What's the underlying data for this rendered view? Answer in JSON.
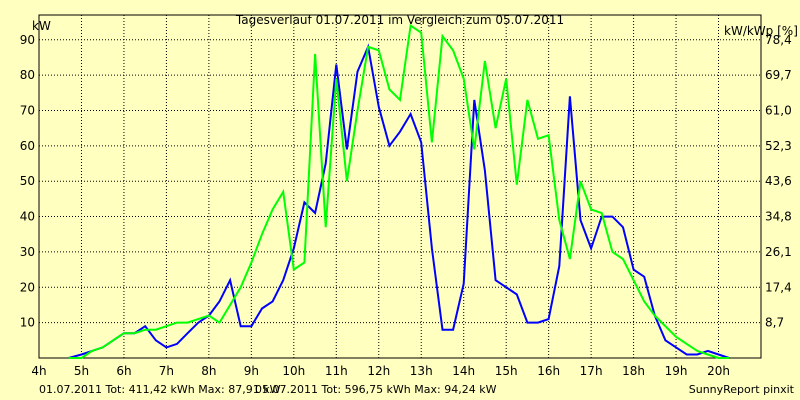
{
  "chart_data": {
    "type": "line",
    "title": "Tagesverlauf 01.07.2011 im Vergleich zum 05.07.2011",
    "ylabel_left": "kW",
    "ylabel_right": "kW/kWp [%]",
    "footer_left": "SunnyReport pinxit",
    "ylim": [
      0,
      97
    ],
    "xlim": [
      4,
      21
    ],
    "grid": true,
    "y_ticks_left": [
      10,
      20,
      30,
      40,
      50,
      60,
      70,
      80,
      90
    ],
    "y_ticks_right": [
      "8,7",
      "17,4",
      "26,1",
      "34,8",
      "43,6",
      "52,3",
      "61,0",
      "69,7",
      "78,4"
    ],
    "x_ticks": [
      "4h",
      "5h",
      "6h",
      "7h",
      "8h",
      "9h",
      "10h",
      "11h",
      "12h",
      "13h",
      "14h",
      "15h",
      "16h",
      "17h",
      "18h",
      "19h",
      "20h"
    ],
    "series": [
      {
        "name": "01.07.2011",
        "summary": "01.07.2011 Tot: 411,42 kWh Max: 87,91 kW",
        "color": "#0000ff",
        "x": [
          4.7,
          5.0,
          5.25,
          5.5,
          5.75,
          6.0,
          6.25,
          6.5,
          6.75,
          7.0,
          7.25,
          7.5,
          7.75,
          8.0,
          8.25,
          8.5,
          8.75,
          9.0,
          9.25,
          9.5,
          9.75,
          10.0,
          10.25,
          10.5,
          10.75,
          11.0,
          11.25,
          11.5,
          11.75,
          12.0,
          12.25,
          12.5,
          12.75,
          13.0,
          13.25,
          13.5,
          13.75,
          14.0,
          14.25,
          14.5,
          14.75,
          15.0,
          15.25,
          15.5,
          15.75,
          16.0,
          16.25,
          16.5,
          16.75,
          17.0,
          17.25,
          17.5,
          17.75,
          18.0,
          18.25,
          18.5,
          18.75,
          19.0,
          19.25,
          19.5,
          19.75,
          20.0,
          20.25
        ],
        "values": [
          0,
          1,
          2,
          3,
          5,
          7,
          7,
          9,
          5,
          3,
          4,
          7,
          10,
          12,
          16,
          22,
          9,
          9,
          14,
          16,
          22,
          31,
          44,
          41,
          55,
          83,
          59,
          81,
          88,
          71,
          60,
          64,
          69,
          61,
          31,
          8,
          8,
          21,
          73,
          53,
          22,
          20,
          18,
          10,
          10,
          11,
          26,
          74,
          39,
          31,
          40,
          40,
          37,
          25,
          23,
          12,
          5,
          3,
          1,
          1,
          2,
          1,
          0
        ]
      },
      {
        "name": "05.07.2011",
        "summary": "05.07.2011 Tot: 596,75 kWh Max: 94,24 kW",
        "color": "#00ff00",
        "x": [
          4.7,
          5.0,
          5.25,
          5.5,
          5.75,
          6.0,
          6.25,
          6.5,
          6.75,
          7.0,
          7.25,
          7.5,
          7.75,
          8.0,
          8.25,
          8.5,
          8.75,
          9.0,
          9.25,
          9.5,
          9.75,
          10.0,
          10.25,
          10.5,
          10.75,
          11.0,
          11.25,
          11.5,
          11.75,
          12.0,
          12.25,
          12.5,
          12.75,
          13.0,
          13.25,
          13.5,
          13.75,
          14.0,
          14.25,
          14.5,
          14.75,
          15.0,
          15.25,
          15.5,
          15.75,
          16.0,
          16.25,
          16.5,
          16.75,
          17.0,
          17.25,
          17.5,
          17.75,
          18.0,
          18.25,
          18.5,
          18.75,
          19.0,
          19.25,
          19.5,
          19.75,
          20.0,
          20.25
        ],
        "values": [
          0,
          0,
          2,
          3,
          5,
          7,
          7,
          8,
          8,
          9,
          10,
          10,
          11,
          12,
          10,
          15,
          20,
          27,
          35,
          42,
          47,
          25,
          27,
          86,
          37,
          79,
          50,
          70,
          88,
          87,
          76,
          73,
          94,
          92,
          61,
          91,
          87,
          79,
          59,
          84,
          65,
          79,
          49,
          73,
          62,
          63,
          39,
          28,
          50,
          42,
          41,
          30,
          28,
          22,
          16,
          12,
          9,
          6,
          4,
          2,
          1,
          0,
          0
        ]
      }
    ]
  }
}
